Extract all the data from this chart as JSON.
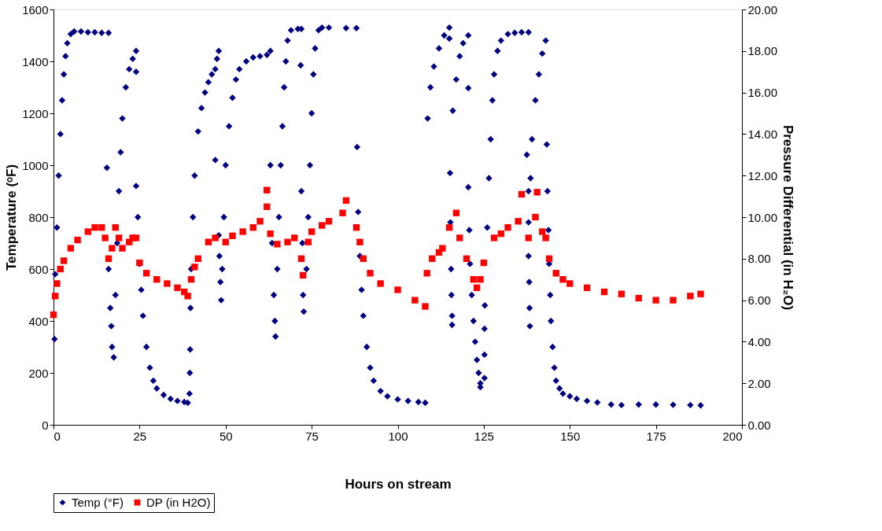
{
  "chart_data": {
    "type": "scatter",
    "xlabel": "Hours on stream",
    "ylabel": "Temperature (ᵒF)",
    "y2label": "Pressure Differential (in H₂O)",
    "xlim": [
      0,
      200
    ],
    "xticks": [
      0,
      25,
      50,
      75,
      100,
      125,
      150,
      175,
      200
    ],
    "ylim": [
      0,
      1600
    ],
    "yticks": [
      0,
      200,
      400,
      600,
      800,
      1000,
      1200,
      1400,
      1600
    ],
    "y2lim": [
      0,
      20
    ],
    "y2ticks": [
      {
        "value": 0,
        "label": "0.00"
      },
      {
        "value": 2,
        "label": "2.00"
      },
      {
        "value": 4,
        "label": "4.00"
      },
      {
        "value": 6,
        "label": "6.00"
      },
      {
        "value": 8,
        "label": "8.00"
      },
      {
        "value": 10,
        "label": "10.00"
      },
      {
        "value": 12,
        "label": "12.00"
      },
      {
        "value": 14,
        "label": "14.00"
      },
      {
        "value": 16,
        "label": "16.00"
      },
      {
        "value": 18,
        "label": "18.00"
      },
      {
        "value": 20,
        "label": "20.00"
      }
    ],
    "grid": false,
    "legend": "bottom",
    "series": [
      {
        "name": "Temp (°F)",
        "color": "#000080",
        "marker": "diamond",
        "x": [
          0.3,
          0.5,
          1,
          1.5,
          2,
          2.5,
          3,
          3.5,
          4,
          5,
          6,
          8,
          10,
          12,
          14,
          16,
          15.5,
          16,
          16.5,
          16.8,
          17,
          17.5,
          18,
          18.5,
          19,
          19.5,
          20,
          21,
          22,
          23,
          24,
          24,
          24,
          24.5,
          25,
          25.5,
          26,
          27,
          28,
          29,
          30,
          32,
          34,
          36,
          38,
          39,
          39.5,
          39.6,
          39.7,
          39.8,
          40,
          40.5,
          41,
          42,
          43,
          44,
          45,
          46,
          47,
          47.5,
          48,
          47,
          48,
          48.2,
          48.5,
          48.7,
          49,
          49.5,
          50,
          51,
          52,
          53,
          54,
          56,
          58,
          60,
          62,
          63,
          63,
          63.5,
          64,
          64.3,
          64.5,
          65,
          65.5,
          66,
          66.5,
          67,
          67.5,
          68,
          69,
          71,
          72,
          71.8,
          72,
          72.3,
          72.5,
          72.7,
          73.5,
          74,
          74.5,
          75,
          75.5,
          76,
          77,
          78,
          80,
          85,
          88,
          88.2,
          88.5,
          89,
          89.5,
          90,
          91,
          92,
          93,
          95,
          97,
          100,
          103,
          106,
          108,
          108.7,
          109.5,
          110.5,
          112,
          113.5,
          115,
          115,
          115.2,
          115.3,
          115.5,
          115.6,
          115.8,
          115.8,
          116,
          117,
          118,
          119,
          120.5,
          120.5,
          120.5,
          120.8,
          121,
          121.5,
          122,
          122.5,
          123,
          123.5,
          124,
          124,
          125.2,
          125.2,
          125.2,
          125.3,
          126,
          126.5,
          127,
          127.5,
          128,
          129,
          130,
          132,
          134,
          136,
          138,
          137.5,
          138,
          138,
          138,
          138.2,
          138.3,
          138.4,
          138.6,
          139,
          140,
          141,
          142,
          143,
          143.3,
          143.5,
          143.8,
          144,
          144.3,
          144.5,
          145,
          145.5,
          146,
          147,
          148,
          150,
          152,
          155,
          158,
          162,
          165,
          170,
          175,
          180,
          185,
          188
        ],
        "values": [
          330,
          580,
          760,
          960,
          1120,
          1250,
          1350,
          1420,
          1470,
          1505,
          1515,
          1515,
          1512,
          1512,
          1510,
          1510,
          990,
          600,
          450,
          380,
          300,
          260,
          500,
          700,
          900,
          1050,
          1180,
          1300,
          1370,
          1410,
          1440,
          1360,
          920,
          800,
          620,
          520,
          420,
          300,
          220,
          170,
          140,
          115,
          100,
          92,
          88,
          85,
          120,
          200,
          290,
          450,
          600,
          800,
          960,
          1130,
          1220,
          1280,
          1320,
          1350,
          1370,
          1410,
          1440,
          1020,
          730,
          650,
          550,
          480,
          600,
          800,
          1000,
          1150,
          1260,
          1330,
          1370,
          1400,
          1415,
          1420,
          1425,
          1440,
          1000,
          700,
          500,
          400,
          340,
          600,
          800,
          1000,
          1150,
          1300,
          1400,
          1480,
          1520,
          1525,
          1525,
          1385,
          900,
          700,
          500,
          436,
          600,
          800,
          1000,
          1200,
          1350,
          1450,
          1520,
          1530,
          1530,
          1528,
          1528,
          1070,
          820,
          650,
          520,
          420,
          300,
          220,
          170,
          130,
          110,
          98,
          92,
          88,
          85,
          1180,
          1300,
          1380,
          1450,
          1500,
          1530,
          1488,
          970,
          780,
          600,
          500,
          420,
          385,
          1210,
          1330,
          1420,
          1470,
          1500,
          1297,
          915,
          750,
          620,
          500,
          400,
          320,
          250,
          200,
          160,
          145,
          180,
          270,
          370,
          460,
          760,
          950,
          1100,
          1250,
          1350,
          1440,
          1480,
          1505,
          1510,
          1512,
          1512,
          1040,
          900,
          780,
          650,
          550,
          450,
          380,
          950,
          1100,
          1250,
          1350,
          1430,
          1480,
          1080,
          900,
          750,
          620,
          500,
          400,
          300,
          220,
          170,
          140,
          120,
          110,
          100,
          92,
          86,
          78,
          76,
          78,
          78,
          77,
          76,
          75
        ]
      },
      {
        "name": "DP (in H2O)",
        "color": "#ff0000",
        "marker": "square",
        "axis": "y2",
        "x": [
          0,
          0.5,
          1,
          2,
          3,
          5,
          7,
          10,
          12,
          14,
          15,
          16,
          17,
          18,
          19,
          20,
          22,
          23,
          24,
          25,
          27,
          30,
          33,
          36,
          38,
          39,
          40,
          41,
          42,
          45,
          47,
          50,
          52,
          55,
          58,
          60,
          62,
          62,
          63,
          65,
          68,
          70,
          72,
          72.5,
          74,
          75,
          78,
          80,
          84,
          85,
          88,
          89,
          90,
          92,
          95,
          100,
          105,
          108,
          108.5,
          110,
          112,
          113,
          115,
          117,
          118,
          120,
          122,
          123,
          124,
          125,
          128,
          130,
          132,
          135,
          136,
          138,
          140,
          140.5,
          142,
          143,
          144,
          146,
          148,
          150,
          155,
          160,
          165,
          170,
          175,
          180,
          185,
          188
        ],
        "values": [
          5.3,
          6.2,
          6.8,
          7.5,
          7.9,
          8.5,
          8.9,
          9.3,
          9.5,
          9.5,
          9.0,
          8.0,
          8.5,
          9.5,
          9.0,
          8.5,
          8.8,
          9.0,
          9.0,
          7.8,
          7.3,
          7.0,
          6.8,
          6.6,
          6.4,
          6.2,
          7.0,
          7.6,
          8.0,
          8.8,
          9.0,
          8.8,
          9.1,
          9.3,
          9.5,
          9.8,
          10.5,
          11.3,
          9.2,
          8.7,
          8.8,
          9.0,
          8.0,
          7.2,
          8.8,
          9.3,
          9.6,
          9.8,
          10.2,
          10.8,
          9.5,
          8.8,
          8.0,
          7.3,
          6.8,
          6.5,
          6.0,
          5.7,
          7.3,
          8.0,
          8.3,
          8.5,
          9.5,
          10.2,
          9.0,
          8.0,
          7.0,
          6.6,
          7.0,
          7.8,
          9.0,
          9.2,
          9.5,
          9.8,
          11.1,
          9.0,
          10.0,
          11.2,
          9.3,
          9.0,
          8.0,
          7.3,
          7.0,
          6.8,
          6.6,
          6.4,
          6.3,
          6.1,
          6.0,
          6.0,
          6.2,
          6.3
        ]
      }
    ]
  }
}
